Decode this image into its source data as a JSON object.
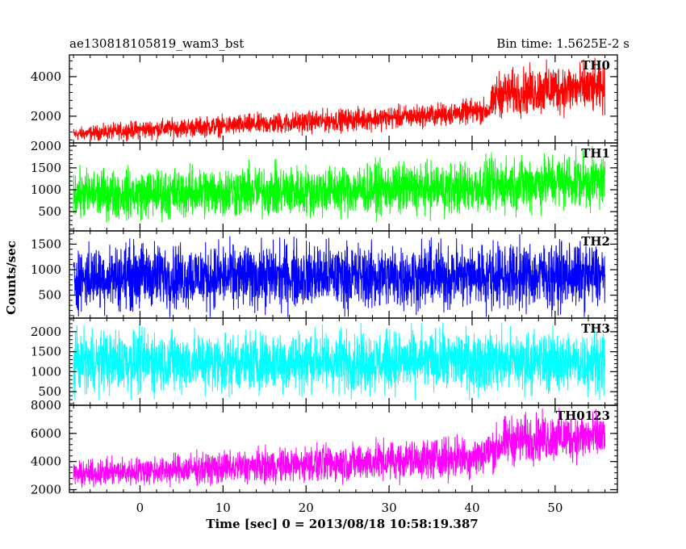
{
  "chart_data": {
    "type": "line",
    "title": "ae130818105819_wam3_bst",
    "subtitle": "Bin time: 1.5625E-2 s",
    "xlabel": "Time [sec] 0 = 2013/08/18 10:58:19.387",
    "ylabel": "Counts/sec",
    "xlim": [
      -8.5,
      57.5
    ],
    "x_ticks": [
      0,
      10,
      20,
      30,
      40,
      50
    ],
    "x_tick_labels": [
      "0",
      "10",
      "20",
      "30",
      "40",
      "50"
    ],
    "grid": false,
    "panels": [
      {
        "name": "TH0",
        "color": "#ff0000",
        "ylim": [
          650,
          5100
        ],
        "y_ticks": [
          2000,
          4000
        ],
        "y_tick_labels": [
          "2000",
          "4000"
        ],
        "x": [
          -8,
          -4,
          0,
          4,
          8,
          12,
          16,
          20,
          24,
          28,
          32,
          36,
          40,
          42,
          43,
          46,
          50,
          54,
          56
        ],
        "lower": [
          680,
          700,
          750,
          800,
          850,
          900,
          950,
          1000,
          1100,
          1150,
          1250,
          1350,
          1450,
          1500,
          1700,
          1750,
          1800,
          1800,
          1800
        ],
        "upper": [
          1500,
          1700,
          1900,
          2000,
          2100,
          2200,
          2300,
          2400,
          2500,
          2600,
          2700,
          2800,
          3000,
          3100,
          4500,
          4700,
          5000,
          5000,
          4900
        ]
      },
      {
        "name": "TH1",
        "color": "#00ff00",
        "ylim": [
          60,
          2070
        ],
        "y_ticks": [
          500,
          1000,
          1500,
          2000
        ],
        "y_tick_labels": [
          "500",
          "1000",
          "1500",
          "2000"
        ],
        "x": [
          -8,
          0,
          10,
          20,
          30,
          40,
          44,
          50,
          56
        ],
        "lower": [
          200,
          200,
          220,
          250,
          270,
          300,
          330,
          400,
          400
        ],
        "upper": [
          1600,
          1600,
          1700,
          1700,
          1750,
          1800,
          1900,
          2000,
          2000
        ]
      },
      {
        "name": "TH2",
        "color": "#0000ff",
        "ylim": [
          50,
          1760
        ],
        "y_ticks": [
          500,
          1000,
          1500
        ],
        "y_tick_labels": [
          "500",
          "1000",
          "1500"
        ],
        "x": [
          -8,
          0,
          10,
          20,
          30,
          40,
          50,
          56
        ],
        "lower": [
          70,
          70,
          70,
          70,
          70,
          70,
          70,
          70
        ],
        "upper": [
          1600,
          1700,
          1650,
          1700,
          1650,
          1700,
          1700,
          1650
        ]
      },
      {
        "name": "TH3",
        "color": "#00ffff",
        "ylim": [
          160,
          2340
        ],
        "y_ticks": [
          500,
          1000,
          1500,
          2000
        ],
        "y_tick_labels": [
          "500",
          "1000",
          "1500",
          "2000"
        ],
        "x": [
          -8,
          0,
          10,
          20,
          30,
          40,
          50,
          56
        ],
        "lower": [
          300,
          280,
          300,
          280,
          300,
          290,
          300,
          290
        ],
        "upper": [
          2200,
          2250,
          2200,
          2250,
          2200,
          2250,
          2200,
          2250
        ]
      },
      {
        "name": "TH0123",
        "color": "#ff00ff",
        "ylim": [
          1800,
          8000
        ],
        "y_ticks": [
          2000,
          4000,
          6000,
          8000
        ],
        "y_tick_labels": [
          "2000",
          "4000",
          "6000",
          "8000"
        ],
        "x": [
          -8,
          0,
          10,
          20,
          30,
          40,
          42,
          44,
          50,
          56
        ],
        "lower": [
          2000,
          2050,
          2100,
          2200,
          2300,
          2500,
          2700,
          3300,
          3600,
          3600
        ],
        "upper": [
          4200,
          4600,
          5000,
          5400,
          5800,
          6200,
          6500,
          7600,
          7900,
          7900
        ]
      }
    ]
  }
}
